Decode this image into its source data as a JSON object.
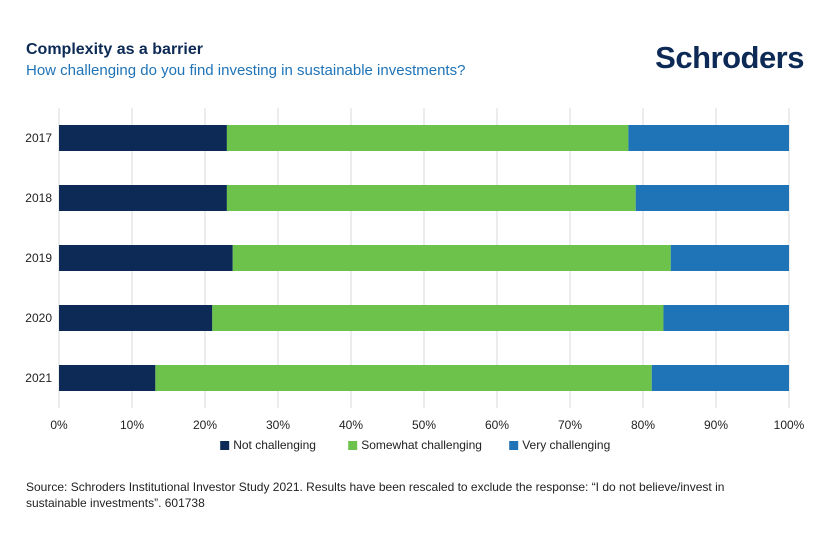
{
  "header": {
    "title": "Complexity as a barrier",
    "subtitle": "How challenging do you find investing in sustainable investments?",
    "logo": "Schroders"
  },
  "chart_data": {
    "type": "bar",
    "orientation": "horizontal",
    "stacked": true,
    "title": "Complexity as a barrier",
    "subtitle": "How challenging do you find investing in sustainable investments?",
    "categories": [
      "2017",
      "2018",
      "2019",
      "2020",
      "2021"
    ],
    "series": [
      {
        "name": "Not challenging",
        "color": "#0c2a55",
        "values": [
          23,
          23,
          23.8,
          21,
          13.2
        ]
      },
      {
        "name": "Somewhat challenging",
        "color": "#6cc24a",
        "values": [
          55,
          56,
          60,
          61.8,
          68
        ]
      },
      {
        "name": "Very challenging",
        "color": "#1f73b7",
        "values": [
          22,
          21,
          16.2,
          17.2,
          18.8
        ]
      }
    ],
    "xlim": [
      0,
      100
    ],
    "x_ticks": [
      "0%",
      "10%",
      "20%",
      "30%",
      "40%",
      "50%",
      "60%",
      "70%",
      "80%",
      "90%",
      "100%"
    ],
    "grid": "vertical",
    "legend": "bottom"
  },
  "footer": {
    "source": "Source: Schroders Institutional Investor Study 2021. Results have been rescaled to exclude the response: “I do not believe/invest in sustainable investments”. 601738"
  }
}
